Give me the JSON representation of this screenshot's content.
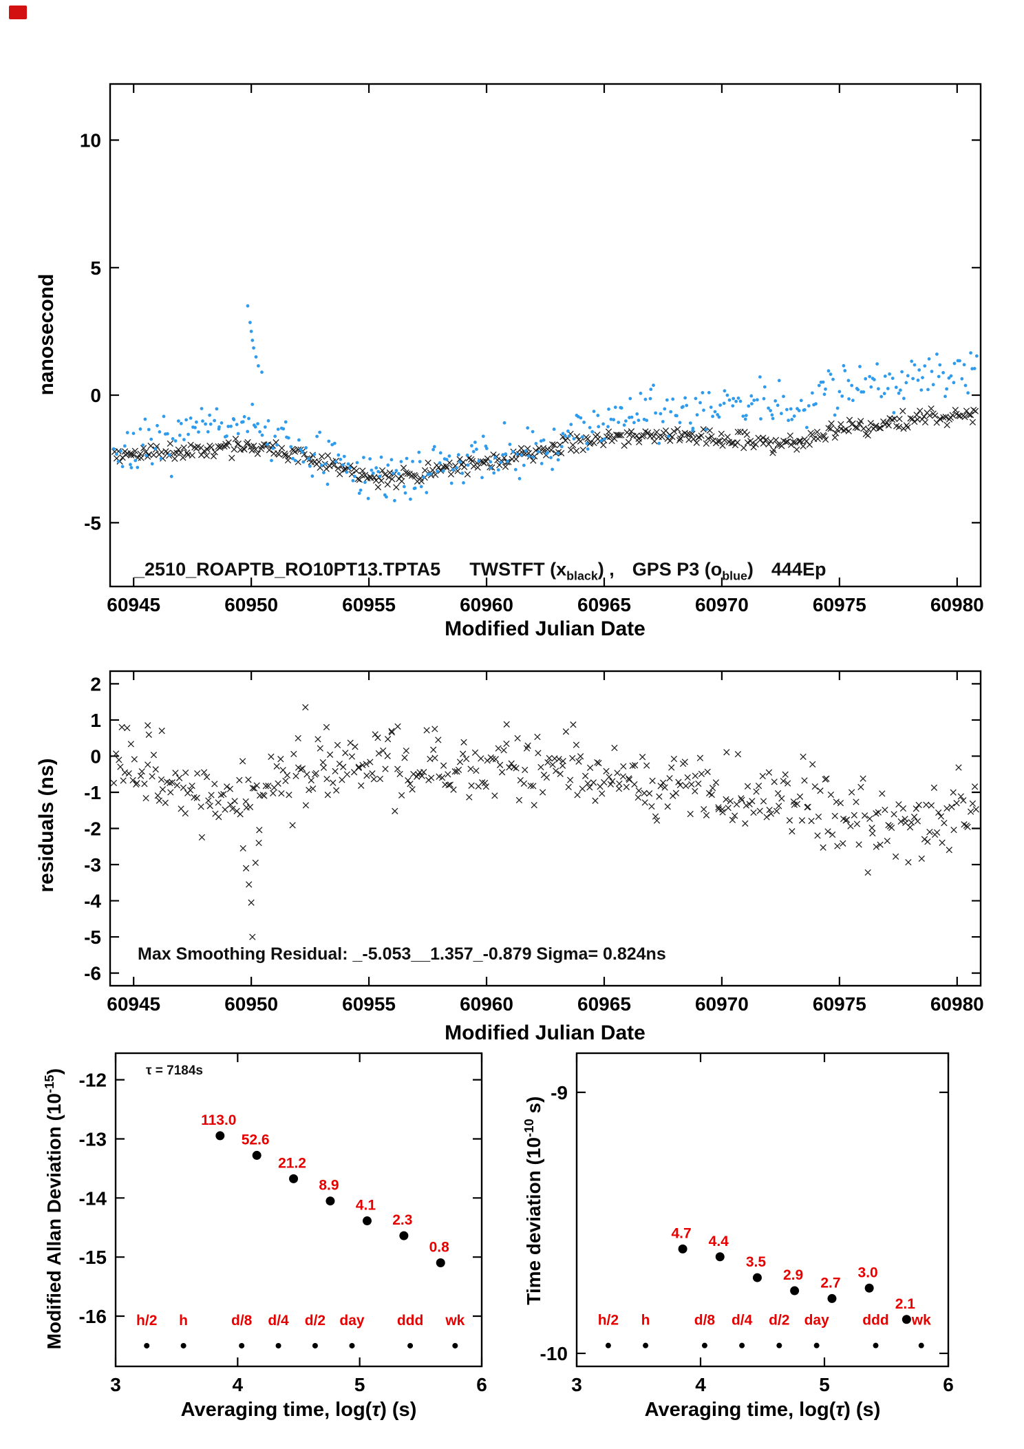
{
  "page": {
    "corner_mark_color": "#d41111"
  },
  "colors": {
    "black_series": "#1c1c1c",
    "blue_series": "#2f9bec",
    "red_labels": "#e60000",
    "axis": "#000000"
  },
  "chart_data": [
    {
      "id": "top",
      "type": "scatter",
      "xlabel": "Modified Julian Date",
      "ylabel": "nanosecond",
      "xlim": [
        60944,
        60981
      ],
      "ylim": [
        -7.5,
        12.2
      ],
      "xticks": [
        60945,
        60950,
        60955,
        60960,
        60965,
        60970,
        60975,
        60980
      ],
      "yticks": [
        -5,
        0,
        5,
        10
      ],
      "annotation": {
        "file_id": "_2510_ROAPTB_RO10PT13.TPTA5",
        "s1_pre": "TWSTFT (x",
        "s1_sub": "black",
        "s1_post": ") ,",
        "s2_pre": "GPS P3 (o",
        "s2_sub": "blue",
        "s2_post": ")",
        "epochs": "444Ep"
      },
      "series": [
        {
          "name": "TWSTFT",
          "marker": "x",
          "color": "#1c1c1c",
          "n_points": 444,
          "scatter_sd": 0.17,
          "seed": 11,
          "trend": [
            [
              60944,
              -2.4
            ],
            [
              60945.5,
              -2.3
            ],
            [
              60947,
              -2.2
            ],
            [
              60948.5,
              -2.1
            ],
            [
              60949.5,
              -1.95
            ],
            [
              60950.5,
              -2.0
            ],
            [
              60951.5,
              -2.15
            ],
            [
              60952.5,
              -2.45
            ],
            [
              60953.5,
              -2.7
            ],
            [
              60954.5,
              -3.0
            ],
            [
              60955.5,
              -3.35
            ],
            [
              60956.5,
              -3.25
            ],
            [
              60957.5,
              -3.0
            ],
            [
              60959,
              -2.8
            ],
            [
              60960.5,
              -2.55
            ],
            [
              60962,
              -2.25
            ],
            [
              60963.5,
              -1.95
            ],
            [
              60965,
              -1.7
            ],
            [
              60966.5,
              -1.58
            ],
            [
              60968,
              -1.6
            ],
            [
              60969.5,
              -1.68
            ],
            [
              60971,
              -1.78
            ],
            [
              60972.3,
              -1.92
            ],
            [
              60973.5,
              -1.8
            ],
            [
              60974.5,
              -1.5
            ],
            [
              60975.5,
              -1.3
            ],
            [
              60977,
              -1.1
            ],
            [
              60978.5,
              -0.92
            ],
            [
              60980,
              -0.78
            ],
            [
              60981,
              -0.7
            ]
          ]
        },
        {
          "name": "GPS P3",
          "marker": "dot",
          "color": "#2f9bec",
          "n_points": 410,
          "scatter_sd": 0.5,
          "seed": 7,
          "trend": [
            [
              60944,
              -2.35
            ],
            [
              60945.5,
              -2.1
            ],
            [
              60947,
              -1.7
            ],
            [
              60948.5,
              -1.15
            ],
            [
              60949.5,
              -0.95
            ],
            [
              60950.5,
              -1.4
            ],
            [
              60951.5,
              -1.95
            ],
            [
              60953,
              -2.55
            ],
            [
              60954.5,
              -3.0
            ],
            [
              60955.8,
              -3.3
            ],
            [
              60957,
              -3.05
            ],
            [
              60958.5,
              -2.7
            ],
            [
              60960,
              -2.5
            ],
            [
              60961.5,
              -2.35
            ],
            [
              60962.8,
              -2.1
            ],
            [
              60964,
              -1.3
            ],
            [
              60965.5,
              -0.8
            ],
            [
              60967,
              -0.6
            ],
            [
              60968.5,
              -0.5
            ],
            [
              60970,
              -0.38
            ],
            [
              60971.5,
              -0.3
            ],
            [
              60972.8,
              -0.45
            ],
            [
              60973.8,
              -0.15
            ],
            [
              60975,
              0.4
            ],
            [
              60976.5,
              0.6
            ],
            [
              60978,
              0.72
            ],
            [
              60979.5,
              0.82
            ],
            [
              60981,
              0.95
            ]
          ],
          "outliers": [
            [
              60949.85,
              3.5
            ],
            [
              60949.95,
              2.85
            ],
            [
              60950.0,
              2.5
            ],
            [
              60950.05,
              2.15
            ],
            [
              60950.1,
              1.85
            ],
            [
              60950.2,
              1.5
            ],
            [
              60950.3,
              1.15
            ],
            [
              60950.45,
              0.9
            ]
          ]
        }
      ]
    },
    {
      "id": "middle",
      "type": "scatter",
      "xlabel": "Modified Julian Date",
      "ylabel": "residuals (ns)",
      "xlim": [
        60944,
        60981
      ],
      "ylim": [
        -6.35,
        2.35
      ],
      "xticks": [
        60945,
        60950,
        60955,
        60960,
        60965,
        60970,
        60975,
        60980
      ],
      "yticks": [
        -6,
        -5,
        -4,
        -3,
        -2,
        -1,
        0,
        1,
        2
      ],
      "annotation_text": "Max Smoothing Residual: _-5.053__1.357_-0.879  Sigma= 0.824ns",
      "series": [
        {
          "name": "residuals",
          "marker": "x",
          "color": "#1c1c1c",
          "n_points": 444,
          "scatter_sd": 0.5,
          "seed": 23,
          "trend": [
            [
              60944,
              -0.15
            ],
            [
              60945,
              -0.3
            ],
            [
              60946,
              -0.5
            ],
            [
              60947,
              -0.85
            ],
            [
              60948,
              -1.05
            ],
            [
              60949,
              -1.1
            ],
            [
              60950,
              -1.25
            ],
            [
              60950.8,
              -0.9
            ],
            [
              60951.5,
              -0.6
            ],
            [
              60952.5,
              -0.45
            ],
            [
              60954,
              -0.3
            ],
            [
              60955.5,
              -0.25
            ],
            [
              60957,
              -0.45
            ],
            [
              60958.5,
              -0.35
            ],
            [
              60960,
              -0.25
            ],
            [
              60961.5,
              -0.35
            ],
            [
              60963,
              -0.3
            ],
            [
              60964.5,
              -0.4
            ],
            [
              60966,
              -0.55
            ],
            [
              60967.5,
              -0.7
            ],
            [
              60969,
              -0.85
            ],
            [
              60970.5,
              -1.0
            ],
            [
              60972,
              -1.05
            ],
            [
              60973.5,
              -1.15
            ],
            [
              60975,
              -1.6
            ],
            [
              60976.5,
              -1.8
            ],
            [
              60978,
              -1.85
            ],
            [
              60979.5,
              -1.7
            ],
            [
              60981,
              -1.45
            ]
          ],
          "outliers": [
            [
              60949.65,
              -2.55
            ],
            [
              60949.78,
              -3.1
            ],
            [
              60949.9,
              -3.55
            ],
            [
              60950.0,
              -4.05
            ],
            [
              60950.05,
              -5.0
            ],
            [
              60950.18,
              -2.95
            ],
            [
              60950.32,
              -2.4
            ],
            [
              60952.3,
              1.35
            ],
            [
              60944.5,
              0.8
            ],
            [
              60945.6,
              0.85
            ],
            [
              60946.2,
              0.7
            ],
            [
              60953.2,
              0.8
            ],
            [
              60957.8,
              0.75
            ]
          ]
        }
      ]
    },
    {
      "id": "mdev",
      "type": "scatter",
      "xlabel_pre": "Averaging time, log(",
      "xlabel_tau": "τ",
      "xlabel_post": ") (s)",
      "ylabel_pre": "Modified Allan Deviation (10",
      "ylabel_sup": "-15",
      "ylabel_post": ")",
      "xlim": [
        3,
        6
      ],
      "ylim": [
        -16.85,
        -11.55
      ],
      "xticks": [
        3,
        4,
        5,
        6
      ],
      "yticks": [
        -16,
        -15,
        -14,
        -13,
        -12
      ],
      "tau_note": "τ = 7184s",
      "points": {
        "x": [
          3.856,
          4.157,
          4.458,
          4.759,
          5.061,
          5.362,
          5.663
        ],
        "y": [
          -12.947,
          -13.279,
          -13.674,
          -14.051,
          -14.387,
          -14.638,
          -15.097
        ],
        "labels": [
          "113.0",
          "52.6",
          "21.2",
          "8.9",
          "4.1",
          "2.3",
          "0.8"
        ],
        "values": [
          113.0,
          52.6,
          21.2,
          8.9,
          4.1,
          2.3,
          0.8
        ]
      },
      "duration_axis": {
        "labels": [
          "h/2",
          "h",
          "d/8",
          "d/4",
          "d/2",
          "day",
          "ddd",
          "wk"
        ],
        "x": [
          3.255,
          3.556,
          4.033,
          4.334,
          4.635,
          4.937,
          5.414,
          5.782
        ],
        "label_y": -16.15,
        "dot_y": -16.5
      }
    },
    {
      "id": "tdev",
      "type": "scatter",
      "xlabel_pre": "Averaging time, log(",
      "xlabel_tau": "τ",
      "xlabel_post": ") (s)",
      "ylabel_pre": "Time deviation (10",
      "ylabel_sup": "-10",
      "ylabel_post": " s)",
      "xlim": [
        3,
        6
      ],
      "ylim": [
        -10.05,
        -8.85
      ],
      "xticks": [
        3,
        4,
        5,
        6
      ],
      "yticks": [
        -10,
        -9
      ],
      "points": {
        "x": [
          3.856,
          4.157,
          4.458,
          4.759,
          5.061,
          5.362,
          5.663
        ],
        "y": [
          -9.6,
          -9.63,
          -9.71,
          -9.76,
          -9.79,
          -9.75,
          -9.87
        ],
        "labels": [
          "4.7",
          "4.4",
          "3.5",
          "2.9",
          "2.7",
          "3.0",
          "2.1"
        ],
        "values": [
          4.7,
          4.4,
          3.5,
          2.9,
          2.7,
          3.0,
          2.1
        ]
      },
      "duration_axis": {
        "labels": [
          "h/2",
          "h",
          "d/8",
          "d/4",
          "d/2",
          "day",
          "ddd",
          "wk"
        ],
        "x": [
          3.255,
          3.556,
          4.033,
          4.334,
          4.635,
          4.937,
          5.414,
          5.782
        ],
        "label_y": -9.89,
        "dot_y": -9.97
      }
    }
  ]
}
